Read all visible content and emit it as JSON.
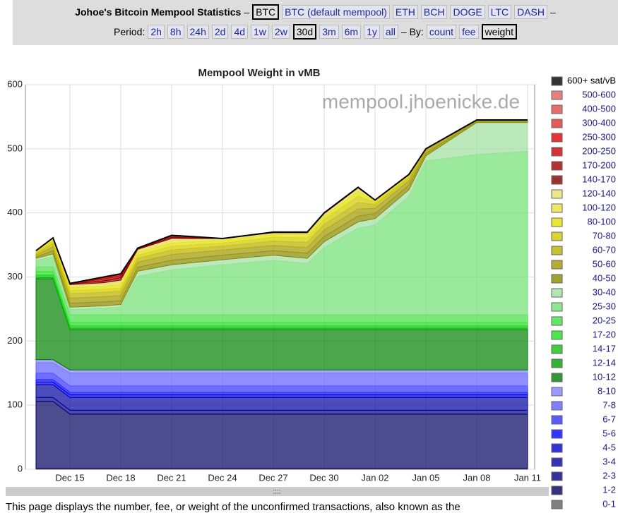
{
  "header": {
    "title": "Johoe's Bitcoin Mempool Statistics",
    "title_dash": "–",
    "coins": [
      "BTC",
      "BTC (default mempool)",
      "ETH",
      "BCH",
      "DOGE",
      "LTC",
      "DASH"
    ],
    "coins_dash": "–",
    "period_label": "Period:",
    "periods": [
      "2h",
      "8h",
      "24h",
      "2d",
      "4d",
      "1w",
      "2w",
      "30d",
      "3m",
      "6m",
      "1y",
      "all"
    ],
    "by_label": "– By:",
    "by": [
      "count",
      "fee",
      "weight"
    ]
  },
  "chart_data": {
    "type": "stacked-area",
    "title": "Mempool Weight in vMB",
    "watermark": "mempool.jhoenicke.de",
    "x": [
      "Dec 13",
      "Dec 14",
      "Dec 15",
      "Dec 17",
      "Dec 18",
      "Dec 19",
      "Dec 21",
      "Dec 24",
      "Dec 27",
      "Dec 29",
      "Dec 30",
      "Jan 01",
      "Jan 02",
      "Jan 04",
      "Jan 05",
      "Jan 08",
      "Jan 11"
    ],
    "xlim": [
      "Dec 13",
      "Jan 11"
    ],
    "xticks": [
      "Dec 15",
      "Dec 18",
      "Dec 21",
      "Dec 24",
      "Dec 27",
      "Dec 30",
      "Jan 02",
      "Jan 05",
      "Jan 08",
      "Jan 11"
    ],
    "ylim": [
      0,
      600
    ],
    "yticks": [
      0,
      100,
      200,
      300,
      400,
      500,
      600
    ],
    "grid": true,
    "series": [
      {
        "name": "600+ sat/vB",
        "color": "#000000",
        "values": [
          0,
          0,
          0,
          0,
          0,
          0,
          0,
          0,
          0,
          0,
          0,
          0,
          0,
          0,
          0,
          0,
          0
        ]
      },
      {
        "name": "500-600",
        "color": "#e06060",
        "values": [
          0,
          0,
          0,
          0,
          0,
          0,
          0,
          0,
          0,
          0,
          0,
          0,
          0,
          0,
          0,
          0,
          0
        ]
      },
      {
        "name": "400-500",
        "color": "#e04848",
        "values": [
          0,
          0,
          0,
          0,
          0,
          0,
          0,
          0,
          0,
          0,
          0,
          0,
          0,
          0,
          0,
          0,
          0
        ]
      },
      {
        "name": "300-400",
        "color": "#e03030",
        "values": [
          0,
          0,
          0,
          0,
          0,
          0,
          0,
          0,
          0,
          0,
          0,
          0,
          0,
          0,
          0,
          0,
          0
        ]
      },
      {
        "name": "250-300",
        "color": "#e00000",
        "values": [
          0,
          0,
          0,
          1,
          1,
          0,
          0,
          0,
          0,
          0,
          0,
          0,
          0,
          0,
          0,
          0,
          0
        ]
      },
      {
        "name": "200-250",
        "color": "#c80000",
        "values": [
          0,
          0,
          0,
          2,
          2,
          0,
          1,
          0,
          0,
          0,
          0,
          0,
          0,
          0,
          0,
          0,
          0
        ]
      },
      {
        "name": "170-200",
        "color": "#a00000",
        "values": [
          0,
          0,
          1,
          3,
          3,
          1,
          2,
          0,
          0,
          0,
          0,
          0,
          0,
          0,
          0,
          0,
          0
        ]
      },
      {
        "name": "140-170",
        "color": "#800000",
        "values": [
          0,
          0,
          1,
          3,
          4,
          1,
          2,
          0,
          1,
          1,
          1,
          1,
          0,
          0,
          0,
          0,
          0
        ]
      },
      {
        "name": "120-140",
        "color": "#e8e070",
        "values": [
          0,
          1,
          2,
          2,
          3,
          2,
          3,
          1,
          1,
          1,
          1,
          2,
          0,
          0,
          0,
          0,
          0
        ]
      },
      {
        "name": "100-120",
        "color": "#e8e040",
        "values": [
          1,
          1,
          3,
          3,
          4,
          3,
          4,
          2,
          2,
          2,
          3,
          4,
          1,
          1,
          0,
          0,
          0
        ]
      },
      {
        "name": "80-100",
        "color": "#e0e000",
        "values": [
          1,
          3,
          4,
          5,
          5,
          4,
          5,
          4,
          4,
          5,
          5,
          7,
          2,
          1,
          0,
          0,
          0
        ]
      },
      {
        "name": "70-80",
        "color": "#d0c800",
        "values": [
          2,
          4,
          5,
          5,
          5,
          5,
          6,
          5,
          6,
          7,
          8,
          10,
          4,
          3,
          1,
          0,
          0
        ]
      },
      {
        "name": "60-70",
        "color": "#b8b000",
        "values": [
          3,
          5,
          7,
          7,
          7,
          6,
          7,
          6,
          7,
          8,
          9,
          10,
          6,
          5,
          2,
          1,
          1
        ]
      },
      {
        "name": "50-60",
        "color": "#a09800",
        "values": [
          3,
          6,
          8,
          8,
          8,
          8,
          9,
          8,
          8,
          9,
          10,
          11,
          8,
          7,
          4,
          1,
          1
        ]
      },
      {
        "name": "40-50",
        "color": "#888800",
        "values": [
          2,
          5,
          6,
          6,
          6,
          6,
          7,
          7,
          7,
          8,
          8,
          9,
          8,
          7,
          4,
          2,
          2
        ]
      },
      {
        "name": "30-40",
        "color": "#a0e0a0",
        "values": [
          3,
          5,
          4,
          4,
          4,
          8,
          8,
          8,
          8,
          8,
          9,
          10,
          10,
          10,
          8,
          50,
          45
        ]
      },
      {
        "name": "25-30",
        "color": "#70e070",
        "values": [
          10,
          15,
          8,
          10,
          12,
          60,
          70,
          78,
          85,
          80,
          105,
          135,
          140,
          185,
          240,
          250,
          255
        ]
      },
      {
        "name": "20-25",
        "color": "#40e040",
        "values": [
          8,
          8,
          12,
          12,
          12,
          12,
          12,
          12,
          12,
          12,
          12,
          12,
          12,
          12,
          12,
          12,
          12
        ]
      },
      {
        "name": "17-20",
        "color": "#20e020",
        "values": [
          5,
          5,
          5,
          5,
          5,
          5,
          5,
          5,
          5,
          5,
          5,
          5,
          5,
          5,
          5,
          5,
          5
        ]
      },
      {
        "name": "14-17",
        "color": "#10c010",
        "values": [
          4,
          4,
          4,
          4,
          4,
          4,
          4,
          4,
          4,
          4,
          4,
          4,
          4,
          4,
          4,
          4,
          4
        ]
      },
      {
        "name": "12-14",
        "color": "#00a000",
        "values": [
          2,
          2,
          2,
          2,
          2,
          2,
          2,
          2,
          2,
          2,
          2,
          2,
          2,
          2,
          2,
          2,
          2
        ]
      },
      {
        "name": "10-12",
        "color": "#008000",
        "values": [
          126,
          126,
          63,
          63,
          63,
          63,
          63,
          63,
          63,
          63,
          63,
          63,
          63,
          63,
          63,
          63,
          63
        ]
      },
      {
        "name": "8-10",
        "color": "#8080ff",
        "values": [
          5,
          5,
          5,
          5,
          5,
          5,
          5,
          5,
          5,
          5,
          5,
          5,
          5,
          5,
          5,
          5,
          5
        ]
      },
      {
        "name": "7-8",
        "color": "#6060ff",
        "values": [
          16,
          16,
          20,
          20,
          20,
          20,
          20,
          20,
          20,
          20,
          20,
          20,
          20,
          20,
          20,
          20,
          20
        ]
      },
      {
        "name": "6-7",
        "color": "#3030ff",
        "values": [
          10,
          10,
          10,
          10,
          10,
          10,
          10,
          10,
          10,
          10,
          10,
          10,
          10,
          10,
          10,
          10,
          10
        ]
      },
      {
        "name": "5-6",
        "color": "#0000ff",
        "values": [
          4,
          4,
          4,
          4,
          4,
          4,
          4,
          4,
          4,
          4,
          4,
          4,
          4,
          4,
          4,
          4,
          4
        ]
      },
      {
        "name": "4-5",
        "color": "#0000d0",
        "values": [
          4,
          4,
          4,
          4,
          4,
          4,
          4,
          4,
          4,
          4,
          4,
          4,
          4,
          4,
          4,
          4,
          4
        ]
      },
      {
        "name": "3-4",
        "color": "#0000a0",
        "values": [
          20,
          20,
          20,
          20,
          20,
          20,
          20,
          20,
          20,
          20,
          20,
          20,
          20,
          20,
          20,
          20,
          20
        ]
      },
      {
        "name": "2-3",
        "color": "#000080",
        "values": [
          6,
          6,
          6,
          6,
          6,
          6,
          6,
          6,
          6,
          6,
          6,
          6,
          6,
          6,
          6,
          6,
          6
        ]
      },
      {
        "name": "1-2",
        "color": "#000060",
        "values": [
          105,
          105,
          85,
          85,
          85,
          85,
          85,
          85,
          85,
          85,
          85,
          85,
          85,
          85,
          85,
          85,
          85
        ]
      },
      {
        "name": "0-1",
        "color": "#606060",
        "values": [
          1,
          1,
          1,
          1,
          1,
          1,
          1,
          1,
          1,
          1,
          1,
          1,
          1,
          1,
          1,
          1,
          1
        ]
      }
    ]
  },
  "footer": {
    "handle": "::::",
    "text": "This page displays the number, fee, or weight of the unconfirmed transactions, also known as the"
  }
}
